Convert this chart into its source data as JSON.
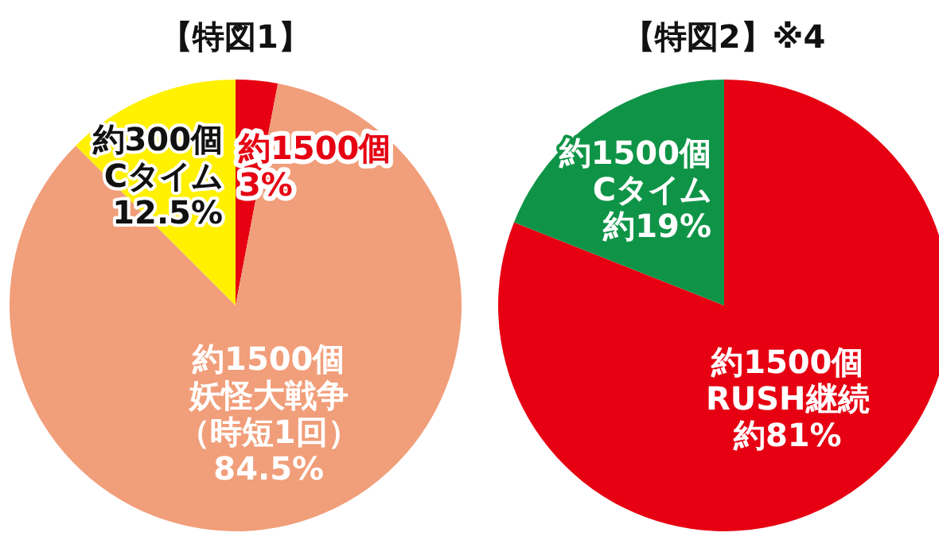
{
  "chart_data": [
    {
      "type": "pie",
      "title": "【特図1】",
      "categories": [
        "約1500個",
        "約1500個妖怪大戦争（時短1回）",
        "約300個Cタイム"
      ],
      "values": [
        3,
        84.5,
        12.5
      ],
      "value_labels": [
        "3%",
        "84.5%",
        "12.5%"
      ],
      "colors": [
        "#e60012",
        "#f19e7a",
        "#fff100"
      ]
    },
    {
      "type": "pie",
      "title": "【特図2】※4",
      "categories": [
        "約1500個RUSH継続",
        "約1500個Cタイム"
      ],
      "values": [
        81,
        19
      ],
      "value_labels": [
        "約81%",
        "約19%"
      ],
      "colors": [
        "#e60012",
        "#0f9447"
      ]
    }
  ]
}
